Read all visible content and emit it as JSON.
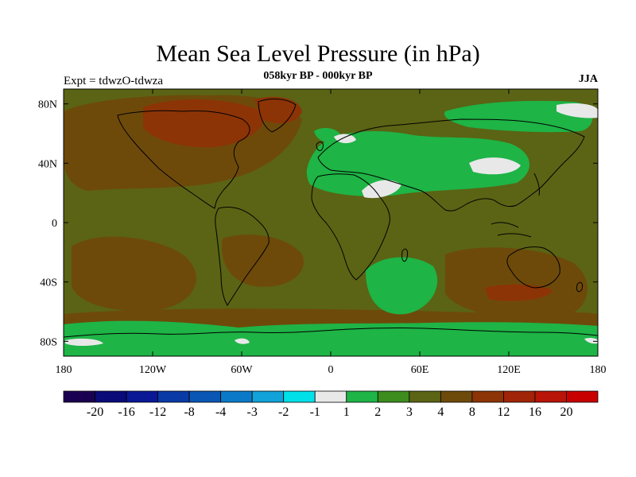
{
  "title": "Mean Sea Level Pressure (in hPa)",
  "subtitle": "058kyr BP - 000kyr BP",
  "experiment": "Expt = tdwzO-tdwza",
  "season": "JJA",
  "x_ticks": [
    "180",
    "120W",
    "60W",
    "0",
    "60E",
    "120E",
    "180"
  ],
  "y_ticks": [
    "80N",
    "40N",
    "0",
    "40S",
    "80S"
  ],
  "colorbar": {
    "labels": [
      "-20",
      "-16",
      "-12",
      "-8",
      "-4",
      "-3",
      "-2",
      "-1",
      "1",
      "2",
      "3",
      "4",
      "8",
      "12",
      "16",
      "20"
    ],
    "colors": [
      "#1a0050",
      "#0a0a78",
      "#0a1896",
      "#0a3aa6",
      "#0a56b4",
      "#0a7ac8",
      "#10a2d8",
      "#00e0e8",
      "#e8e8e8",
      "#1eb446",
      "#3c8c1e",
      "#5a6414",
      "#6e4a0a",
      "#8c3406",
      "#a02408",
      "#b81408",
      "#c80000"
    ]
  },
  "legend_colors": {
    "land_outline": "#000000",
    "dominant_field": "#5a6414",
    "positive_high": "#8c3406",
    "low_change": "#1eb446",
    "near_zero": "#e8e8e8"
  }
}
